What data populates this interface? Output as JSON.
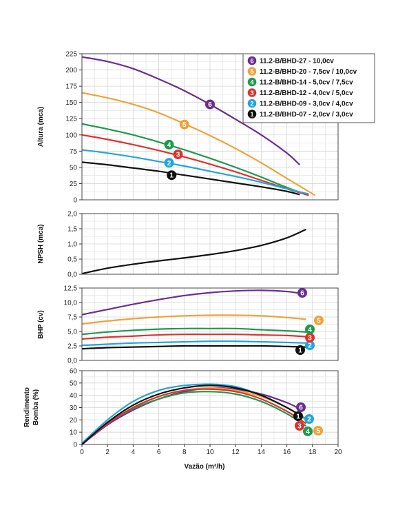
{
  "xlabel": "Vazão (m³/h)",
  "x_ticks": [
    "0",
    "2",
    "4",
    "6",
    "8",
    "10",
    "12",
    "14",
    "16",
    "18",
    "20"
  ],
  "legend": [
    {
      "id": "6",
      "label": "11.2-B/BHD-27 - 10,0cv",
      "color": "#6a2d91"
    },
    {
      "id": "5",
      "label": "11.2-B/BHD-20 - 7,5cv / 10,0cv",
      "color": "#f0a23a"
    },
    {
      "id": "4",
      "label": "11.2-B/BHD-14 - 5,0cv / 7,5cv",
      "color": "#1f9a4b"
    },
    {
      "id": "3",
      "label": "11.2-B/BHD-12 - 4,0cv / 5,0cv",
      "color": "#e0312d"
    },
    {
      "id": "2",
      "label": "11.2-B/BHD-09 - 3,0cv / 4,0cv",
      "color": "#1ea6df"
    },
    {
      "id": "1",
      "label": "11.2-B/BHD-07 - 2,0cv / 3,0cv",
      "color": "#111111"
    }
  ],
  "chart_data": [
    {
      "type": "line",
      "ylabel": "Altura (mca)",
      "xlim": [
        0,
        20
      ],
      "ylim": [
        0,
        225
      ],
      "y_ticks": [
        "0",
        "25",
        "50",
        "75",
        "100",
        "125",
        "150",
        "175",
        "200",
        "225"
      ],
      "grid": true,
      "series": [
        {
          "id": "6",
          "x": [
            0,
            2,
            4,
            6,
            8,
            10,
            12,
            14,
            16,
            17
          ],
          "y": [
            220,
            213,
            202,
            186,
            168,
            147,
            124,
            100,
            72,
            54
          ]
        },
        {
          "id": "5",
          "x": [
            0,
            2,
            4,
            6,
            8,
            10,
            12,
            14,
            16,
            18.2
          ],
          "y": [
            165,
            157,
            147,
            134,
            117,
            99,
            79,
            57,
            33,
            7
          ]
        },
        {
          "id": "4",
          "x": [
            0,
            2,
            4,
            6,
            8,
            10,
            12,
            14,
            16,
            17.7
          ],
          "y": [
            117,
            109,
            100,
            89,
            77,
            64,
            50,
            35,
            19,
            7
          ]
        },
        {
          "id": "3",
          "x": [
            0,
            2,
            4,
            6,
            8,
            10,
            12,
            14,
            16,
            17.7
          ],
          "y": [
            100,
            93,
            85,
            76,
            66,
            55,
            43,
            30,
            17,
            7
          ]
        },
        {
          "id": "2",
          "x": [
            0,
            2,
            4,
            6,
            8,
            10,
            12,
            14,
            16,
            17.7
          ],
          "y": [
            77,
            72,
            66,
            59,
            52,
            44,
            36,
            27,
            17,
            9
          ]
        },
        {
          "id": "1",
          "x": [
            0,
            2,
            4,
            6,
            8,
            10,
            12,
            14,
            16,
            17
          ],
          "y": [
            58,
            54,
            49,
            44,
            38,
            32,
            26,
            20,
            13,
            8
          ]
        }
      ]
    },
    {
      "type": "line",
      "ylabel": "NPSH (mca)",
      "xlim": [
        0,
        20
      ],
      "ylim": [
        0,
        2
      ],
      "y_ticks": [
        "0,0",
        "0,5",
        "1,0",
        "1,5",
        "2,0"
      ],
      "grid": true,
      "series": [
        {
          "id": "npsh",
          "x": [
            0,
            2,
            4,
            6,
            8,
            10,
            12,
            14,
            16,
            17.5
          ],
          "y": [
            0.02,
            0.2,
            0.33,
            0.44,
            0.54,
            0.65,
            0.78,
            0.95,
            1.2,
            1.48
          ]
        }
      ]
    },
    {
      "type": "line",
      "ylabel": "BHP (cv)",
      "xlim": [
        0,
        20
      ],
      "ylim": [
        0,
        12.5
      ],
      "y_ticks": [
        "0,0",
        "2,5",
        "5,0",
        "7,5",
        "10,0",
        "12,5"
      ],
      "grid": true,
      "series": [
        {
          "id": "6",
          "x": [
            0,
            2,
            4,
            6,
            8,
            10,
            12,
            14,
            16,
            17
          ],
          "y": [
            7.9,
            8.8,
            9.7,
            10.5,
            11.2,
            11.7,
            12.0,
            12.1,
            11.9,
            11.6
          ]
        },
        {
          "id": "5",
          "x": [
            0,
            2,
            4,
            6,
            8,
            10,
            12,
            14,
            16,
            17.5
          ],
          "y": [
            6.3,
            6.8,
            7.2,
            7.5,
            7.7,
            7.8,
            7.8,
            7.7,
            7.4,
            7.1
          ]
        },
        {
          "id": "4",
          "x": [
            0,
            2,
            4,
            6,
            8,
            10,
            12,
            14,
            16,
            17.5
          ],
          "y": [
            4.5,
            4.9,
            5.2,
            5.4,
            5.5,
            5.5,
            5.5,
            5.3,
            5.1,
            4.9
          ]
        },
        {
          "id": "3",
          "x": [
            0,
            2,
            4,
            6,
            8,
            10,
            12,
            14,
            16,
            17.5
          ],
          "y": [
            3.7,
            4.0,
            4.2,
            4.4,
            4.5,
            4.5,
            4.5,
            4.4,
            4.3,
            4.1
          ]
        },
        {
          "id": "2",
          "x": [
            0,
            2,
            4,
            6,
            8,
            10,
            12,
            14,
            16,
            17.5
          ],
          "y": [
            2.6,
            2.8,
            3.0,
            3.1,
            3.2,
            3.3,
            3.3,
            3.2,
            3.1,
            3.0
          ]
        },
        {
          "id": "1",
          "x": [
            0,
            2,
            4,
            6,
            8,
            10,
            12,
            14,
            16,
            17.5
          ],
          "y": [
            2.0,
            2.2,
            2.3,
            2.4,
            2.5,
            2.5,
            2.5,
            2.5,
            2.4,
            2.3
          ]
        }
      ]
    },
    {
      "type": "line",
      "ylabel": "Rendimento Bomba (%)",
      "xlim": [
        0,
        20
      ],
      "ylim": [
        0,
        60
      ],
      "y_ticks": [
        "0",
        "10",
        "20",
        "30",
        "40",
        "50",
        "60"
      ],
      "grid": true,
      "series": [
        {
          "id": "6",
          "x": [
            0,
            2,
            4,
            6,
            8,
            10,
            12,
            14,
            16,
            17
          ],
          "y": [
            0,
            16,
            28,
            37,
            43,
            46,
            45,
            41,
            34,
            29
          ]
        },
        {
          "id": "5",
          "x": [
            0,
            2,
            4,
            6,
            8,
            10,
            12,
            14,
            16,
            17.5
          ],
          "y": [
            0,
            17,
            30,
            39,
            44,
            46,
            44,
            39,
            30,
            20
          ]
        },
        {
          "id": "4",
          "x": [
            0,
            2,
            4,
            6,
            8,
            10,
            12,
            14,
            16,
            17.5
          ],
          "y": [
            0,
            17,
            29,
            37,
            42,
            43,
            41,
            35,
            25,
            15
          ]
        },
        {
          "id": "3",
          "x": [
            0,
            2,
            4,
            6,
            8,
            10,
            12,
            14,
            16,
            17.5
          ],
          "y": [
            0,
            17,
            30,
            39,
            44,
            45,
            43,
            37,
            27,
            17
          ]
        },
        {
          "id": "2",
          "x": [
            0,
            2,
            4,
            6,
            8,
            10,
            12,
            14,
            16,
            17.5
          ],
          "y": [
            1,
            20,
            35,
            44,
            48,
            49,
            47,
            40,
            30,
            21
          ]
        },
        {
          "id": "1",
          "x": [
            0,
            2,
            4,
            6,
            8,
            10,
            12,
            14,
            16,
            17
          ],
          "y": [
            0,
            18,
            32,
            41,
            46,
            48,
            46,
            40,
            30,
            24
          ]
        }
      ]
    }
  ],
  "markers": [
    {
      "id": "6",
      "x": 10,
      "y": 147
    },
    {
      "id": "5",
      "x": 8,
      "y": 116
    },
    {
      "id": "4",
      "x": 6.8,
      "y": 85
    },
    {
      "id": "3",
      "x": 7.5,
      "y": 70
    },
    {
      "id": "2",
      "x": 6.8,
      "y": 57
    },
    {
      "id": "1",
      "x": 7,
      "y": 38
    }
  ]
}
